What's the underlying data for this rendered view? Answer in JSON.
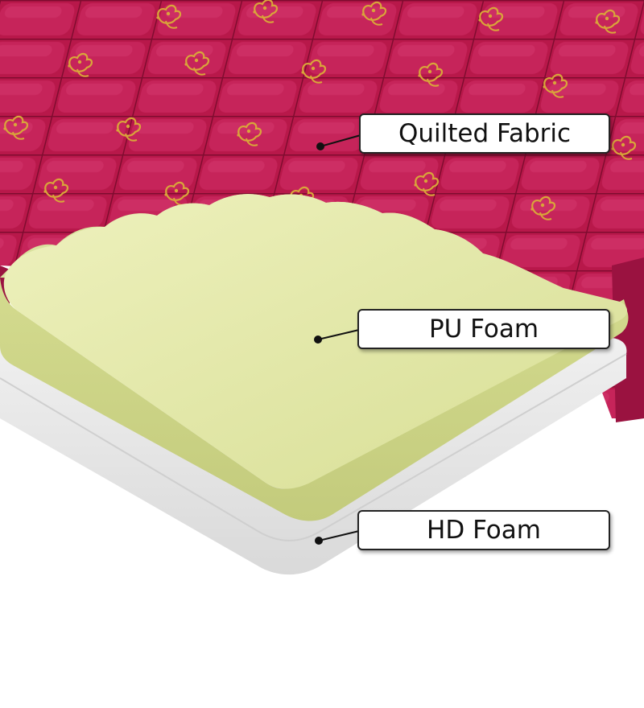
{
  "labels": {
    "quilted_fabric": "Quilted Fabric",
    "pu_foam": "PU Foam",
    "hd_foam": "HD Foam"
  },
  "colors": {
    "fabric": "#b8184a",
    "fabric_dark": "#8e0f36",
    "motif_gold": "#d9a53a",
    "pu_foam": "#dfe4a4",
    "hd_foam": "#e9e9e9",
    "background": "#ffffff"
  }
}
